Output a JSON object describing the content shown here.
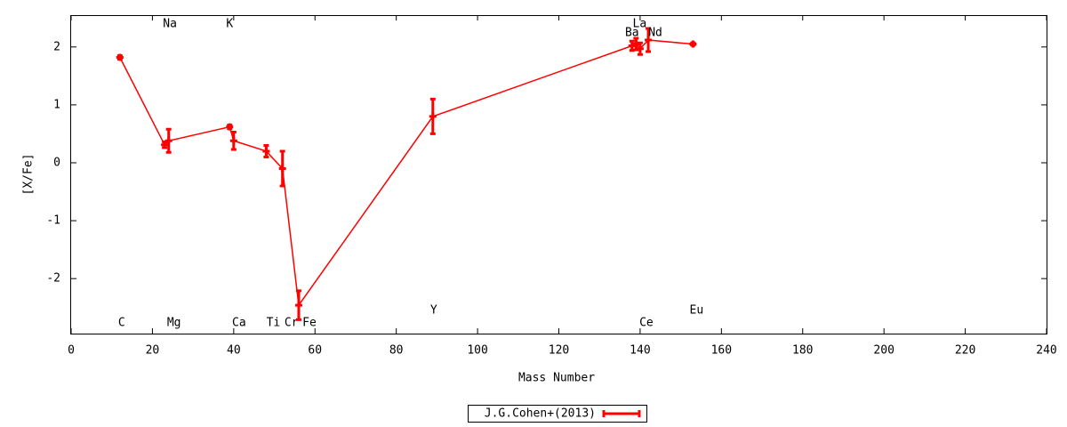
{
  "chart_data": {
    "type": "errorline",
    "xlabel": "Mass Number",
    "ylabel": "[X/Fe]",
    "xlim": [
      0,
      240
    ],
    "xticks": [
      0,
      20,
      40,
      60,
      80,
      100,
      120,
      140,
      160,
      180,
      200,
      220,
      240
    ],
    "ylim": [
      -2.95,
      2.55
    ],
    "yticks": [
      -2,
      -1,
      0,
      1,
      2
    ],
    "grid": false,
    "legend": "bottom",
    "series": [
      {
        "name": "J.G.Cohen+(2013)",
        "color": "#ff0000",
        "labels": [
          "C",
          "Na",
          "Mg",
          "K",
          "Ca",
          "Ti",
          "Cr",
          "Fe",
          "Y",
          "Ba",
          "La",
          "Ce",
          "Nd",
          "Eu"
        ],
        "x": [
          12,
          23,
          24,
          39,
          40,
          48,
          52,
          56,
          89,
          138,
          139,
          140,
          142,
          153
        ],
        "values": [
          1.82,
          0.31,
          0.38,
          0.62,
          0.38,
          0.2,
          -0.1,
          -2.46,
          0.8,
          2.02,
          2.05,
          1.97,
          2.12,
          2.05
        ],
        "errors": [
          0.03,
          0.05,
          0.2,
          0.03,
          0.15,
          0.1,
          0.3,
          0.25,
          0.3,
          0.08,
          0.1,
          0.1,
          0.2,
          0.02
        ]
      }
    ]
  }
}
